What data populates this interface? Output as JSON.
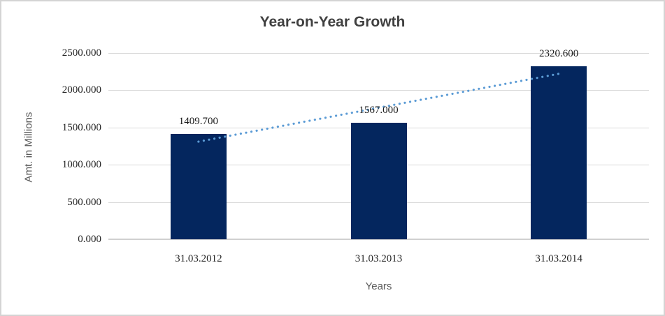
{
  "chart_data": {
    "type": "bar",
    "title": "Year-on-Year Growth",
    "xlabel": "Years",
    "ylabel": "Amt. in Millions",
    "categories": [
      "31.03.2012",
      "31.03.2013",
      "31.03.2014"
    ],
    "values": [
      1409.7,
      1567.0,
      2320.6
    ],
    "data_labels": [
      "1409.700",
      "1567.000",
      "2320.600"
    ],
    "y_ticks": [
      "0.000",
      "500.000",
      "1000.000",
      "1500.000",
      "2000.000",
      "2500.000"
    ],
    "ylim": [
      0,
      2500
    ],
    "grid": true,
    "legend": false,
    "bar_color": "#04265e",
    "trendline": {
      "type": "linear",
      "style": "dotted",
      "color": "#5b9bd5",
      "start_value": 1310.3,
      "end_value": 2221.2
    }
  }
}
